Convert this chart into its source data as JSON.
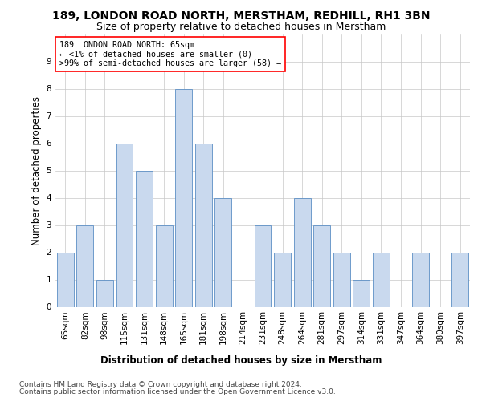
{
  "title": "189, LONDON ROAD NORTH, MERSTHAM, REDHILL, RH1 3BN",
  "subtitle": "Size of property relative to detached houses in Merstham",
  "xlabel": "Distribution of detached houses by size in Merstham",
  "ylabel": "Number of detached properties",
  "categories": [
    "65sqm",
    "82sqm",
    "98sqm",
    "115sqm",
    "131sqm",
    "148sqm",
    "165sqm",
    "181sqm",
    "198sqm",
    "214sqm",
    "231sqm",
    "248sqm",
    "264sqm",
    "281sqm",
    "297sqm",
    "314sqm",
    "331sqm",
    "347sqm",
    "364sqm",
    "380sqm",
    "397sqm"
  ],
  "values": [
    2,
    3,
    1,
    6,
    5,
    3,
    8,
    6,
    4,
    0,
    3,
    2,
    4,
    3,
    2,
    1,
    2,
    0,
    2,
    0,
    2
  ],
  "bar_color": "#c9d9ee",
  "bar_edge_color": "#5b8ec4",
  "annotation_title": "189 LONDON ROAD NORTH: 65sqm",
  "annotation_line1": "← <1% of detached houses are smaller (0)",
  "annotation_line2": ">99% of semi-detached houses are larger (58) →",
  "ylim": [
    0,
    10
  ],
  "yticks": [
    0,
    1,
    2,
    3,
    4,
    5,
    6,
    7,
    8,
    9
  ],
  "footer1": "Contains HM Land Registry data © Crown copyright and database right 2024.",
  "footer2": "Contains public sector information licensed under the Open Government Licence v3.0.",
  "bg_color": "#ffffff",
  "grid_color": "#c8c8c8",
  "title_fontsize": 10,
  "subtitle_fontsize": 9,
  "ylabel_fontsize": 8.5,
  "xlabel_fontsize": 8.5,
  "tick_fontsize": 7.5,
  "annotation_fontsize": 7.2,
  "footer_fontsize": 6.5
}
